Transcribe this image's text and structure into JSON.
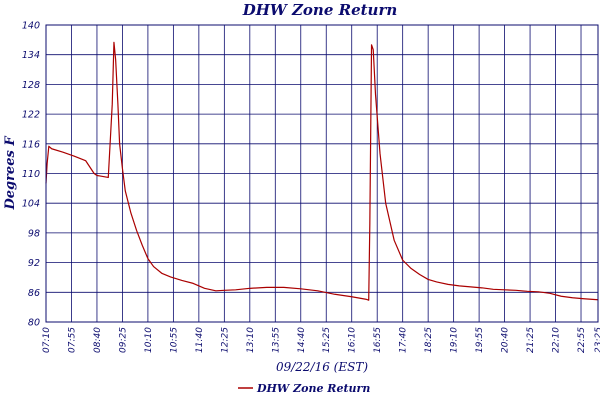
{
  "chart_data": {
    "type": "line",
    "title": "DHW Zone Return",
    "xlabel": "09/22/16 (EST)",
    "ylabel": "Degrees F",
    "ylim": [
      80,
      140
    ],
    "yticks": [
      80,
      86,
      92,
      98,
      104,
      110,
      116,
      122,
      128,
      134,
      140
    ],
    "xlim": [
      "07:10",
      "23:25"
    ],
    "xticks": [
      "07:10",
      "07:55",
      "08:40",
      "09:25",
      "10:10",
      "10:55",
      "11:40",
      "12:25",
      "13:10",
      "13:55",
      "14:40",
      "15:25",
      "16:10",
      "16:55",
      "17:40",
      "18:25",
      "19:10",
      "19:55",
      "20:40",
      "21:25",
      "22:10",
      "22:55",
      "23:25"
    ],
    "grid": true,
    "legend_position": "bottom-left",
    "series": [
      {
        "name": "DHW Zone Return",
        "color": "#aa0000",
        "x": [
          "07:10",
          "07:12",
          "07:15",
          "07:20",
          "07:40",
          "08:00",
          "08:20",
          "08:35",
          "08:40",
          "08:45",
          "09:00",
          "09:07",
          "09:10",
          "09:13",
          "09:17",
          "09:20",
          "09:25",
          "09:30",
          "09:40",
          "09:50",
          "10:00",
          "10:10",
          "10:20",
          "10:35",
          "10:50",
          "11:10",
          "11:30",
          "11:50",
          "12:10",
          "12:25",
          "12:45",
          "13:10",
          "13:40",
          "14:10",
          "14:40",
          "15:10",
          "15:40",
          "16:10",
          "16:25",
          "16:35",
          "16:40",
          "16:42",
          "16:45",
          "16:48",
          "16:52",
          "17:00",
          "17:10",
          "17:25",
          "17:40",
          "17:55",
          "18:10",
          "18:25",
          "18:40",
          "19:00",
          "19:20",
          "19:40",
          "20:00",
          "20:20",
          "20:40",
          "21:00",
          "21:20",
          "21:40",
          "22:00",
          "22:20",
          "22:40",
          "23:00",
          "23:25"
        ],
        "y": [
          108,
          112,
          115.5,
          115,
          114.3,
          113.5,
          112.6,
          110,
          109.6,
          109.5,
          109.2,
          124,
          136.5,
          133,
          124,
          116,
          111,
          106.5,
          102,
          98.5,
          95.5,
          92.8,
          91.2,
          89.8,
          89.1,
          88.4,
          87.8,
          86.8,
          86.3,
          86.4,
          86.5,
          86.8,
          87,
          87,
          86.7,
          86.3,
          85.6,
          85.1,
          84.8,
          84.6,
          84.4,
          100,
          136,
          135,
          126,
          114,
          104,
          96.5,
          92.5,
          90.8,
          89.6,
          88.6,
          88.1,
          87.6,
          87.3,
          87.1,
          86.9,
          86.6,
          86.5,
          86.4,
          86.2,
          86.1,
          85.8,
          85.2,
          84.9,
          84.7,
          84.5
        ]
      }
    ]
  }
}
